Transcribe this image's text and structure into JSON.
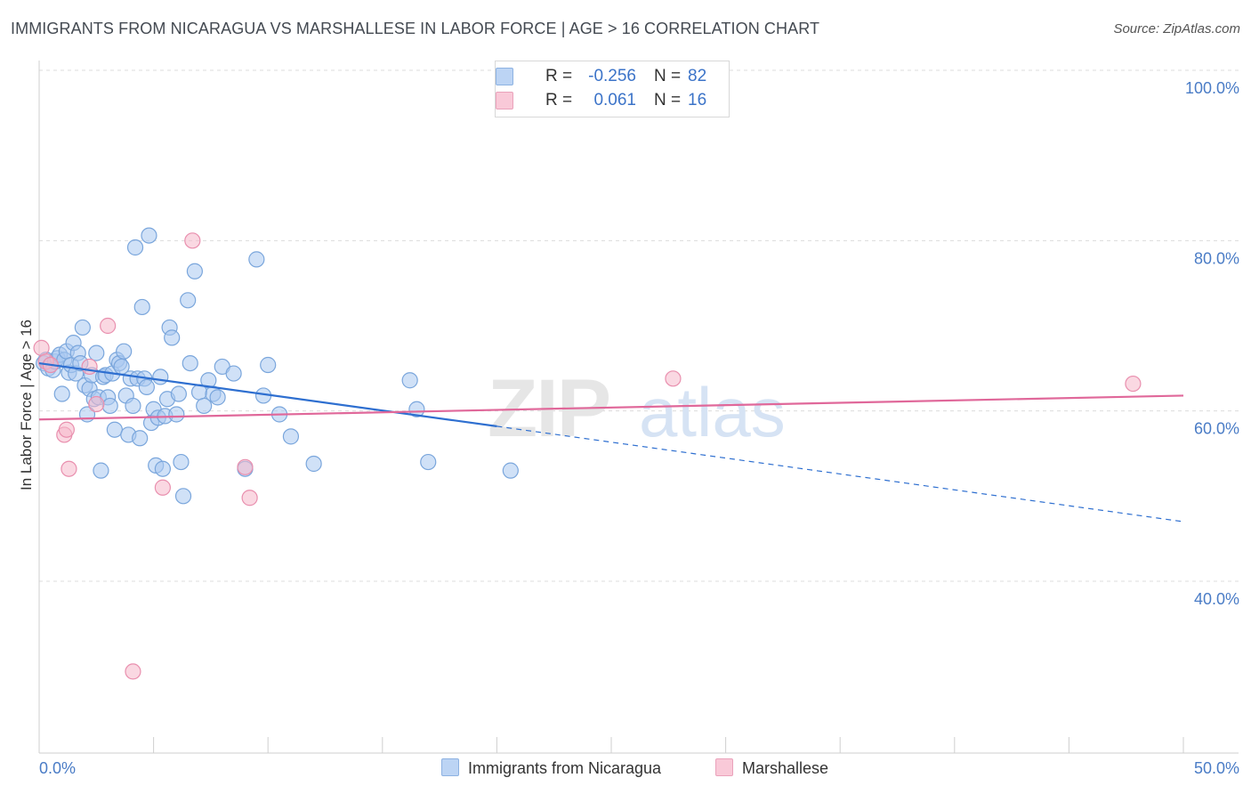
{
  "header": {
    "title": "IMMIGRANTS FROM NICARAGUA VS MARSHALLESE IN LABOR FORCE | AGE > 16 CORRELATION CHART",
    "source": "Source: ZipAtlas.com"
  },
  "legend": {
    "series": [
      {
        "r_label": "R =",
        "r_value": "-0.256",
        "n_label": "N =",
        "n_value": "82"
      },
      {
        "r_label": "R =",
        "r_value": "0.061",
        "n_label": "N =",
        "n_value": "16"
      }
    ]
  },
  "bottom_legend": {
    "items": [
      "Immigrants from Nicaragua",
      "Marshallese"
    ]
  },
  "colors": {
    "blue_fill": "#a9c8f0",
    "blue_stroke": "#7aa6dc",
    "blue_line": "#2e6fd0",
    "pink_fill": "#f6b8cb",
    "pink_stroke": "#e98fae",
    "pink_line": "#e0689a",
    "tick_text": "#4a7cc6"
  },
  "chart_data": {
    "type": "scatter",
    "title": "IMMIGRANTS FROM NICARAGUA VS MARSHALLESE IN LABOR FORCE | AGE > 16 CORRELATION CHART",
    "xlabel": "",
    "ylabel": "In Labor Force | Age > 16",
    "xlim": [
      0,
      50
    ],
    "ylim": [
      20,
      102
    ],
    "x_tick_labels": [
      "0.0%",
      "50.0%"
    ],
    "y_ticks": [
      40,
      60,
      80,
      100
    ],
    "y_tick_labels": [
      "40.0%",
      "60.0%",
      "80.0%",
      "100.0%"
    ],
    "watermark": {
      "zip": "ZIP",
      "atlas": "atlas"
    },
    "series": [
      {
        "name": "Immigrants from Nicaragua",
        "color": "#a9c8f0",
        "x": [
          0.2,
          0.3,
          0.4,
          0.5,
          0.6,
          0.7,
          0.8,
          0.9,
          1.0,
          1.1,
          1.2,
          1.3,
          1.4,
          1.5,
          1.6,
          1.7,
          1.8,
          1.9,
          2.0,
          2.1,
          2.2,
          2.3,
          2.4,
          2.5,
          2.6,
          2.7,
          2.8,
          2.9,
          3.0,
          3.1,
          3.2,
          3.3,
          3.4,
          3.5,
          3.6,
          3.7,
          3.8,
          3.9,
          4.0,
          4.1,
          4.2,
          4.3,
          4.4,
          4.5,
          4.6,
          4.7,
          4.8,
          4.9,
          5.0,
          5.1,
          5.2,
          5.3,
          5.4,
          5.5,
          5.6,
          5.7,
          5.8,
          6.0,
          6.1,
          6.2,
          6.3,
          6.5,
          6.6,
          6.8,
          7.0,
          7.2,
          7.4,
          7.6,
          7.8,
          8.0,
          8.5,
          9.0,
          9.5,
          9.8,
          10.0,
          10.5,
          11.0,
          12.0,
          16.2,
          17.0,
          20.6,
          16.5
        ],
        "y": [
          65.6,
          66.0,
          65.0,
          65.4,
          64.8,
          65.8,
          66.2,
          66.6,
          62.0,
          66.0,
          67.0,
          64.5,
          65.4,
          68.0,
          64.4,
          66.8,
          65.6,
          69.8,
          63.0,
          59.6,
          62.6,
          64.2,
          61.4,
          66.8,
          61.6,
          53.0,
          64.0,
          64.2,
          61.6,
          60.6,
          64.4,
          57.8,
          66.0,
          65.6,
          65.2,
          67.0,
          61.8,
          57.2,
          63.8,
          60.6,
          79.2,
          63.8,
          56.8,
          72.2,
          63.8,
          62.8,
          80.6,
          58.6,
          60.2,
          53.6,
          59.2,
          64.0,
          53.2,
          59.4,
          61.4,
          69.8,
          68.6,
          59.6,
          62.0,
          54.0,
          50.0,
          73.0,
          65.6,
          76.4,
          62.2,
          60.6,
          63.6,
          62.0,
          61.6,
          65.2,
          64.4,
          53.2,
          77.8,
          61.8,
          65.4,
          59.6,
          57.0,
          53.8,
          63.6,
          54.0,
          53.0,
          60.2
        ]
      },
      {
        "name": "Marshallese",
        "color": "#f6b8cb",
        "x": [
          0.1,
          0.3,
          0.5,
          1.1,
          1.2,
          1.3,
          2.2,
          2.5,
          3.0,
          4.1,
          5.4,
          6.7,
          9.0,
          9.2,
          27.7,
          47.8
        ],
        "y": [
          67.4,
          65.8,
          65.4,
          57.2,
          57.8,
          53.2,
          65.2,
          60.8,
          70.0,
          29.4,
          51.0,
          80.0,
          53.4,
          49.8,
          63.8,
          63.2
        ]
      }
    ],
    "trend_lines": [
      {
        "series": "Immigrants from Nicaragua",
        "x_start": 0,
        "y_start": 65.6,
        "x_solid_end": 20,
        "y_solid_end": 58.2,
        "x_end": 50,
        "y_end": 47.0,
        "dashed_after_solid": true
      },
      {
        "series": "Marshallese",
        "x_start": 0,
        "y_start": 59.0,
        "x_end": 50,
        "y_end": 61.8
      }
    ]
  }
}
